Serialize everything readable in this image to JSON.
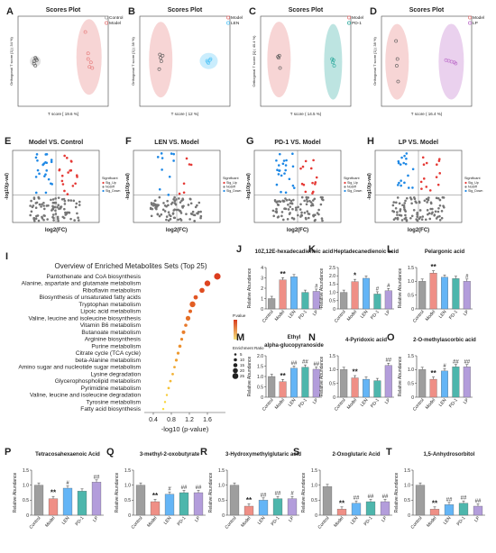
{
  "chart_data": [
    {
      "panel": "A",
      "type": "scatter",
      "title": "Scores Plot",
      "xlabel": "T score [ 19.6 %]",
      "ylabel": "Orthogonal T score [1] ( 34 %)",
      "legend": [
        "Control",
        "Model"
      ],
      "legend_position": "top-right",
      "grid": false,
      "series": [
        {
          "name": "Control",
          "color": "#9e9e9e",
          "x": [
            -2.0,
            -2.1,
            -1.9,
            -2.0,
            -2.1,
            -1.95
          ],
          "y": [
            -0.2,
            -0.1,
            0.05,
            0.15,
            0.0,
            0.1
          ]
        },
        {
          "name": "Model",
          "color": "#e57373",
          "x": [
            1.6,
            1.8,
            2.0,
            1.9,
            2.1,
            1.8
          ],
          "y": [
            1.3,
            0.1,
            -0.05,
            -0.25,
            -0.3,
            0.35
          ]
        }
      ]
    },
    {
      "panel": "B",
      "type": "scatter",
      "title": "Scores Plot",
      "xlabel": "T score ( 12 %)",
      "ylabel": "Orthogonal T score [1] ( 38 %)",
      "legend": [
        "Model",
        "LEN"
      ],
      "legend_position": "top-right",
      "grid": false,
      "series": [
        {
          "name": "Model",
          "color": "#e57373",
          "x": [
            -1.8,
            -1.6,
            -1.7,
            -1.85,
            -1.75
          ],
          "y": [
            0.3,
            0.25,
            0.0,
            -0.35,
            0.15
          ]
        },
        {
          "name": "LEN",
          "color": "#4fc3f7",
          "x": [
            1.6,
            1.8,
            1.7,
            1.85,
            1.65
          ],
          "y": [
            0.02,
            0.05,
            -0.08,
            0.1,
            -0.03
          ]
        }
      ]
    },
    {
      "panel": "C",
      "type": "scatter",
      "title": "Scores Plot",
      "xlabel": "T score ( 14.5 %)",
      "ylabel": "Orthogonal T score [1] ( 40.4 %)",
      "legend": [
        "Model",
        "PD-1"
      ],
      "legend_position": "top-right",
      "grid": false,
      "series": [
        {
          "name": "Model",
          "color": "#e57373",
          "x": [
            -2.0,
            -1.9,
            -1.95,
            -1.85
          ],
          "y": [
            0.2,
            0.25,
            0.15,
            -0.3
          ]
        },
        {
          "name": "PD-1",
          "color": "#26a69a",
          "x": [
            1.9,
            2.0,
            1.95,
            2.05
          ],
          "y": [
            0.1,
            0.05,
            -0.05,
            -0.2
          ]
        }
      ]
    },
    {
      "panel": "D",
      "type": "scatter",
      "title": "Scores Plot",
      "xlabel": "T score ( 16.4 %)",
      "ylabel": "Orthogonal T score [1] ( 38 %)",
      "legend": [
        "Model",
        "LP"
      ],
      "legend_position": "top-right",
      "grid": false,
      "series": [
        {
          "name": "Model",
          "color": "#e57373",
          "x": [
            -2.2,
            -2.1,
            -2.15,
            -2.05
          ],
          "y": [
            0.9,
            0.1,
            -0.2,
            -0.9
          ]
        },
        {
          "name": "LP",
          "color": "#ba68c8",
          "x": [
            1.4,
            1.6,
            1.8,
            2.0,
            2.1
          ],
          "y": [
            0.05,
            0.02,
            -0.02,
            -0.05,
            -0.1
          ]
        }
      ]
    },
    {
      "panel": "E",
      "type": "scatter",
      "title": "Model VS. Control",
      "xlabel": "log2(FC)",
      "ylabel": "-log10(p-val)",
      "legend_title": "Significant",
      "legend": [
        "Sig_Up",
        "NoDiff",
        "Sig_Down"
      ],
      "legend_position": "right",
      "colors": {
        "Sig_Up": "#e53935",
        "NoDiff": "#757575",
        "Sig_Down": "#1e88e5"
      }
    },
    {
      "panel": "F",
      "type": "scatter",
      "title": "LEN VS. Model",
      "xlabel": "log2(FC)",
      "ylabel": "-log10(p-val)",
      "legend_title": "Significant",
      "legend": [
        "Sig_Up",
        "NoDiff",
        "Sig_Down"
      ],
      "legend_position": "right"
    },
    {
      "panel": "G",
      "type": "scatter",
      "title": "PD-1  VS. Model",
      "xlabel": "log2(FC)",
      "ylabel": "-log10(p-val)",
      "legend_title": "Significant",
      "legend": [
        "Sig_Up",
        "NoDiff",
        "Sig_Down"
      ],
      "legend_position": "right"
    },
    {
      "panel": "H",
      "type": "scatter",
      "title": "LP VS. Model",
      "xlabel": "log2(FC)",
      "ylabel": "-log10(p-val)",
      "legend_title": "Significant",
      "legend": [
        "Sig_Up",
        "NoDiff",
        "Sig_Down"
      ],
      "legend_position": "right"
    },
    {
      "panel": "I",
      "type": "scatter",
      "title": "Overview of Enriched Metabolites Sets (Top 25)",
      "xlabel": "-log10 (p-value)",
      "xticks": [
        "0.4",
        "0.8",
        "1.2",
        "1.6"
      ],
      "legend_pvalue_title": "P.value",
      "legend_ratio_title": "Enrichment Ratio",
      "legend_ratio_values": [
        "5",
        "10",
        "15",
        "20",
        "25"
      ],
      "categories": [
        "Pantothenate and CoA biosynthesis",
        "Alanine, aspartate and glutamate metabolism",
        "Riboflavin metabolism",
        "Biosynthesis of unsaturated fatty acids",
        "Tryptophan metabolism",
        "Lipoic acid metabolism",
        "Valine, leucine and isoleucine biosynthesis",
        "Vitamin B6 metabolism",
        "Butanoate metabolism",
        "Arginine biosynthesis",
        "Purine metabolism",
        "Citrate cycle (TCA cycle)",
        "beta-Alanine metabolism",
        "Amino sugar and nucleotide sugar metabolism",
        "Lysine degradation",
        "Glycerophospholipid metabolism",
        "Pyrimidine metabolism",
        "Valine, leucine and isoleucine degradation",
        "Tyrosine metabolism",
        "Fatty acid biosynthesis"
      ],
      "x": [
        1.82,
        1.6,
        1.48,
        1.34,
        1.27,
        1.22,
        1.17,
        1.12,
        1.07,
        1.03,
        0.99,
        0.95,
        0.91,
        0.87,
        0.83,
        0.78,
        0.74,
        0.7,
        0.66,
        0.62
      ],
      "ratio": [
        14,
        12,
        10,
        8,
        12,
        6,
        9,
        5,
        6,
        4,
        5,
        4,
        4,
        3,
        3,
        3,
        3,
        2,
        2,
        2
      ]
    },
    {
      "panel": "J",
      "type": "bar",
      "title": "10Z,12E-hexadecadienoic acid",
      "ylabel": "Relative Abundance",
      "ylim": [
        0,
        4
      ],
      "yticks": [
        "0",
        "1",
        "2",
        "3",
        "4"
      ],
      "categories": [
        "Control",
        "Model",
        "LEN",
        "PD-1",
        "LP"
      ],
      "values": [
        1.0,
        2.8,
        3.1,
        1.6,
        1.7
      ],
      "annotations": [
        "",
        "**",
        "",
        "",
        "#"
      ]
    },
    {
      "panel": "K",
      "type": "bar",
      "title": "Heptadecanedienoic acid",
      "ylabel": "Relative Abundance",
      "ylim": [
        0,
        2.5
      ],
      "yticks": [
        "0",
        "0.5",
        "1.0",
        "1.5",
        "2.0",
        "2.5"
      ],
      "categories": [
        "Control",
        "Model",
        "LEN",
        "PD-1",
        "LP"
      ],
      "values": [
        1.0,
        1.65,
        1.85,
        0.9,
        1.1
      ],
      "annotations": [
        "",
        "*",
        "",
        "#",
        "#"
      ]
    },
    {
      "panel": "L",
      "type": "bar",
      "title": "Pelargonic acid",
      "ylabel": "Relative Abundance",
      "ylim": [
        0,
        1.5
      ],
      "yticks": [
        "0",
        "0.5",
        "1.0",
        "1.5"
      ],
      "categories": [
        "Control",
        "Model",
        "LEN",
        "PD-1",
        "LP"
      ],
      "values": [
        1.0,
        1.3,
        1.15,
        1.1,
        1.0
      ],
      "annotations": [
        "",
        "**",
        "",
        "",
        "#"
      ]
    },
    {
      "panel": "M",
      "type": "bar",
      "title": "Ethyl\nalpha-glucopyranoside",
      "ylabel": "Relative Abundance",
      "ylim": [
        0,
        2.0
      ],
      "yticks": [
        "0",
        "0.5",
        "1.0",
        "1.5",
        "2.0"
      ],
      "categories": [
        "Control",
        "Model",
        "LEN",
        "PD-1",
        "LP"
      ],
      "values": [
        1.0,
        0.75,
        1.4,
        1.45,
        1.35
      ],
      "annotations": [
        "",
        "**",
        "##",
        "##",
        "##"
      ]
    },
    {
      "panel": "N",
      "type": "bar",
      "title": "4-Pyridoxic acid",
      "ylabel": "Relative Abundance",
      "ylim": [
        0,
        1.5
      ],
      "yticks": [
        "0",
        "0.5",
        "1.0",
        "1.5"
      ],
      "categories": [
        "Control",
        "Model",
        "LEN",
        "PD-1",
        "LP"
      ],
      "values": [
        1.0,
        0.7,
        0.65,
        0.6,
        1.15
      ],
      "annotations": [
        "",
        "**",
        "",
        "",
        "##"
      ]
    },
    {
      "panel": "O",
      "type": "bar",
      "title": "2-O-methylascorbic acid",
      "ylabel": "Relative Abundance",
      "ylim": [
        0,
        1.5
      ],
      "yticks": [
        "0",
        "0.5",
        "1.0",
        "1.5"
      ],
      "categories": [
        "Control",
        "Model",
        "LEN",
        "PD-1",
        "LP"
      ],
      "values": [
        1.0,
        0.65,
        0.95,
        1.1,
        1.1
      ],
      "annotations": [
        "",
        "**",
        "#",
        "##",
        "##"
      ]
    },
    {
      "panel": "P",
      "type": "bar",
      "title": "Tetracosahexaenoic Acid",
      "ylabel": "Relative Abundance",
      "ylim": [
        0,
        1.5
      ],
      "yticks": [
        "0",
        "0.5",
        "1.0",
        "1.5"
      ],
      "categories": [
        "Control",
        "Model",
        "LEN",
        "PD-1",
        "LP"
      ],
      "values": [
        1.0,
        0.55,
        0.9,
        0.8,
        1.1
      ],
      "annotations": [
        "",
        "**",
        "#",
        "",
        "##"
      ]
    },
    {
      "panel": "Q",
      "type": "bar",
      "title": "3-methyl-2-oxobutyrate",
      "ylabel": "Relative Abundance",
      "ylim": [
        0,
        1.5
      ],
      "yticks": [
        "0",
        "0.5",
        "1.0",
        "1.5"
      ],
      "categories": [
        "Control",
        "Model",
        "LEN",
        "PD-1",
        "LP"
      ],
      "values": [
        1.0,
        0.45,
        0.7,
        0.75,
        0.75
      ],
      "annotations": [
        "",
        "**",
        "#",
        "##",
        "##"
      ]
    },
    {
      "panel": "R",
      "type": "bar",
      "title": "3-Hydroxymethylglutaric acid",
      "ylabel": "Relative Abundance",
      "ylim": [
        0,
        1.5
      ],
      "yticks": [
        "0",
        "0.5",
        "1.0",
        "1.5"
      ],
      "categories": [
        "Control",
        "Model",
        "LEN",
        "PD-1",
        "LP"
      ],
      "values": [
        1.0,
        0.3,
        0.5,
        0.55,
        0.55
      ],
      "annotations": [
        "",
        "**",
        "##",
        "##",
        "#"
      ]
    },
    {
      "panel": "S",
      "type": "bar",
      "title": "2-Oxoglutaric Acid",
      "ylabel": "Relative Abundance",
      "ylim": [
        0,
        1.5
      ],
      "yticks": [
        "0",
        "0.5",
        "1.0",
        "1.5"
      ],
      "categories": [
        "Control",
        "Model",
        "LEN",
        "PD-1",
        "LP"
      ],
      "values": [
        0.95,
        0.2,
        0.4,
        0.45,
        0.45
      ],
      "annotations": [
        "",
        "**",
        "##",
        "##",
        "##"
      ]
    },
    {
      "panel": "T",
      "type": "bar",
      "title": "1,5-Anhydrosorbitol",
      "ylabel": "Relative Abundance",
      "ylim": [
        0,
        1.5
      ],
      "yticks": [
        "0",
        "0.5",
        "1.0",
        "1.5"
      ],
      "categories": [
        "Control",
        "Model",
        "LEN",
        "PD-1",
        "LP"
      ],
      "values": [
        1.0,
        0.2,
        0.35,
        0.4,
        0.3
      ],
      "annotations": [
        "",
        "**",
        "##",
        "##",
        "##"
      ]
    }
  ],
  "bar_colors": [
    "#9e9e9e",
    "#ef8f86",
    "#64b5f6",
    "#4db6ac",
    "#b39ddb"
  ],
  "volcano_colors": {
    "up": "#e53935",
    "nodiff": "#757575",
    "down": "#1e88e5"
  }
}
